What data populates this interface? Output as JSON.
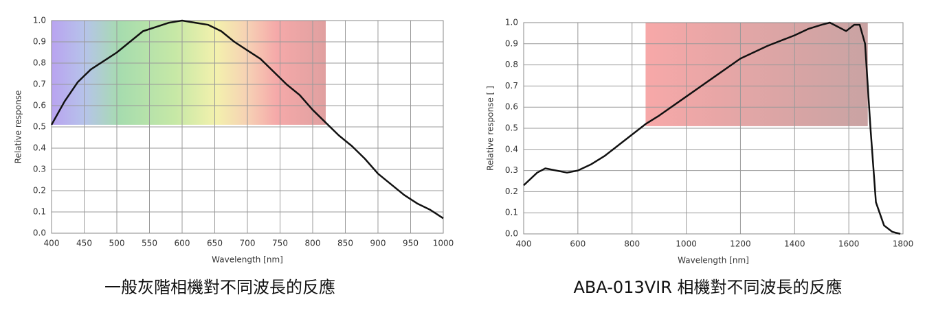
{
  "chart_data": [
    {
      "type": "line",
      "x_label": "Wavelength  [nm]",
      "y_label": "Relative response",
      "caption": "一般灰階相機對不同波長的反應",
      "xlim": [
        400,
        1000
      ],
      "ylim": [
        0,
        1
      ],
      "xticks": [
        400,
        450,
        500,
        550,
        600,
        650,
        700,
        750,
        800,
        850,
        900,
        950,
        1000
      ],
      "yticks": [
        {
          "value": 0,
          "label": "0.0"
        },
        0.1,
        0.2,
        0.3,
        0.4,
        0.5,
        0.6,
        0.7,
        0.8,
        0.9,
        {
          "value": 1,
          "label": "1.0"
        }
      ],
      "grid": true,
      "shade": {
        "x": [
          400,
          820
        ],
        "y": [
          0.51,
          1.0
        ],
        "style": "spectrum"
      },
      "series": [
        {
          "color": "#111111",
          "x": [
            400,
            420,
            440,
            460,
            480,
            500,
            520,
            540,
            560,
            580,
            600,
            620,
            640,
            660,
            680,
            700,
            720,
            740,
            760,
            780,
            800,
            820,
            840,
            860,
            880,
            900,
            920,
            940,
            960,
            980,
            1000
          ],
          "values": [
            0.51,
            0.62,
            0.71,
            0.77,
            0.81,
            0.85,
            0.9,
            0.95,
            0.97,
            0.99,
            1.0,
            0.99,
            0.98,
            0.95,
            0.9,
            0.86,
            0.82,
            0.76,
            0.7,
            0.65,
            0.58,
            0.52,
            0.46,
            0.41,
            0.35,
            0.28,
            0.23,
            0.18,
            0.14,
            0.11,
            0.07
          ]
        }
      ]
    },
    {
      "type": "line",
      "x_label": "Wavelength [nm]",
      "y_label": "Relative response [ ]",
      "caption": "ABA-013VIR 相機對不同波長的反應",
      "xlim": [
        400,
        1800
      ],
      "ylim": [
        0,
        1
      ],
      "xticks": [
        400,
        600,
        800,
        1000,
        1200,
        1400,
        1600,
        1800
      ],
      "yticks": [
        {
          "value": 0,
          "label": "0.0"
        },
        0.1,
        0.2,
        0.3,
        0.4,
        0.5,
        0.6,
        0.7,
        0.8,
        0.9,
        {
          "value": 1,
          "label": "1.0"
        }
      ],
      "grid": true,
      "shade": {
        "x": [
          850,
          1670
        ],
        "y": [
          0.51,
          1.0
        ],
        "style": "red"
      },
      "series": [
        {
          "color": "#111111",
          "x": [
            400,
            450,
            480,
            520,
            560,
            600,
            650,
            700,
            750,
            800,
            850,
            900,
            1000,
            1100,
            1200,
            1300,
            1400,
            1450,
            1500,
            1530,
            1560,
            1590,
            1620,
            1640,
            1660,
            1680,
            1700,
            1730,
            1760,
            1790
          ],
          "values": [
            0.23,
            0.29,
            0.31,
            0.3,
            0.29,
            0.3,
            0.33,
            0.37,
            0.42,
            0.47,
            0.52,
            0.56,
            0.65,
            0.74,
            0.83,
            0.89,
            0.94,
            0.97,
            0.99,
            1.0,
            0.98,
            0.96,
            0.99,
            0.99,
            0.9,
            0.5,
            0.15,
            0.04,
            0.01,
            0.0
          ]
        }
      ]
    }
  ]
}
